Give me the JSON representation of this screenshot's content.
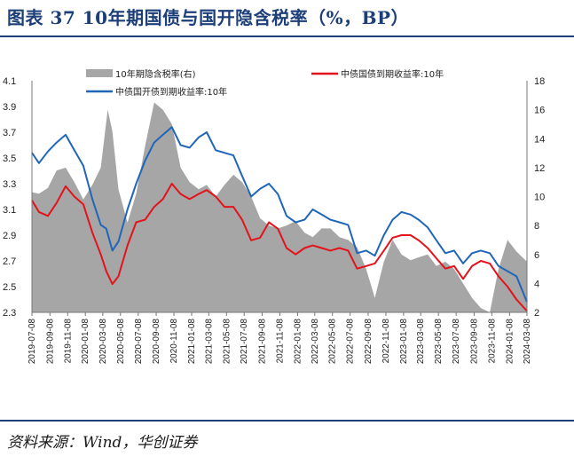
{
  "figure": {
    "title": "图表 37  10年期国债与国开隐含税率（%，BP）",
    "source": "资料来源：Wind，华创证券"
  },
  "colors": {
    "title": "#1c3f7a",
    "rule": "#1c3f7a",
    "gov": "#e3121b",
    "cdb": "#1f66b9",
    "spread": "#a6a6a6"
  },
  "chart_data": {
    "type": "line",
    "title": "",
    "left_axis": {
      "range": [
        2.3,
        4.1
      ],
      "ticks": [
        "4.1",
        "3.9",
        "3.7",
        "3.5",
        "3.3",
        "3.1",
        "2.9",
        "2.7",
        "2.5",
        "2.3"
      ]
    },
    "right_axis": {
      "range": [
        2,
        18
      ],
      "ticks": [
        "18",
        "16",
        "14",
        "12",
        "10",
        "8",
        "6",
        "4",
        "2"
      ]
    },
    "x_ticks": [
      "2019-07-08",
      "2019-09-08",
      "2019-11-08",
      "2020-01-08",
      "2020-03-08",
      "2020-05-08",
      "2020-07-08",
      "2020-09-08",
      "2020-11-08",
      "2021-01-08",
      "2021-03-08",
      "2021-05-08",
      "2021-07-08",
      "2021-09-08",
      "2021-11-08",
      "2022-01-08",
      "2022-03-08",
      "2022-05-08",
      "2022-07-08",
      "2022-09-08",
      "2022-11-08",
      "2023-01-08",
      "2023-03-08",
      "2023-05-08",
      "2023-07-08",
      "2023-09-08",
      "2023-11-08",
      "2024-01-08",
      "2024-03-08"
    ],
    "legend": [
      "10年期隐含税率(右)",
      "中债国债到期收益率:10年",
      "中债国开债到期收益率:10年"
    ],
    "series": [
      {
        "name": "10年期隐含税率(右)",
        "axis": "right",
        "type": "area",
        "color": "#a6a6a6",
        "points": [
          [
            "2019-07-08",
            10.3
          ],
          [
            "2019-08-01",
            10.2
          ],
          [
            "2019-09-01",
            10.6
          ],
          [
            "2019-10-01",
            11.8
          ],
          [
            "2019-11-01",
            12.0
          ],
          [
            "2019-12-01",
            11.0
          ],
          [
            "2020-01-01",
            9.8
          ],
          [
            "2020-02-01",
            10.8
          ],
          [
            "2020-03-01",
            12.0
          ],
          [
            "2020-03-25",
            16.0
          ],
          [
            "2020-04-10",
            14.5
          ],
          [
            "2020-05-01",
            10.5
          ],
          [
            "2020-06-01",
            8.2
          ],
          [
            "2020-07-01",
            10.2
          ],
          [
            "2020-08-01",
            13.5
          ],
          [
            "2020-09-01",
            16.5
          ],
          [
            "2020-10-01",
            16.0
          ],
          [
            "2020-11-01",
            15.0
          ],
          [
            "2020-12-01",
            12.0
          ],
          [
            "2021-01-01",
            11.0
          ],
          [
            "2021-02-01",
            10.5
          ],
          [
            "2021-03-01",
            10.8
          ],
          [
            "2021-04-01",
            10.0
          ],
          [
            "2021-05-01",
            10.8
          ],
          [
            "2021-06-01",
            11.5
          ],
          [
            "2021-07-01",
            11.0
          ],
          [
            "2021-08-01",
            10.0
          ],
          [
            "2021-09-01",
            8.5
          ],
          [
            "2021-10-01",
            8.0
          ],
          [
            "2021-11-01",
            7.8
          ],
          [
            "2021-12-01",
            8.0
          ],
          [
            "2022-01-01",
            8.3
          ],
          [
            "2022-02-01",
            7.5
          ],
          [
            "2022-03-01",
            7.2
          ],
          [
            "2022-04-01",
            7.8
          ],
          [
            "2022-05-01",
            7.8
          ],
          [
            "2022-06-01",
            7.2
          ],
          [
            "2022-07-01",
            7.0
          ],
          [
            "2022-08-01",
            6.5
          ],
          [
            "2022-09-01",
            5.0
          ],
          [
            "2022-10-01",
            3.0
          ],
          [
            "2022-11-01",
            5.5
          ],
          [
            "2022-12-01",
            7.0
          ],
          [
            "2023-01-01",
            6.0
          ],
          [
            "2023-02-01",
            5.6
          ],
          [
            "2023-03-01",
            5.8
          ],
          [
            "2023-04-01",
            6.0
          ],
          [
            "2023-05-01",
            5.2
          ],
          [
            "2023-06-01",
            5.5
          ],
          [
            "2023-07-01",
            5.0
          ],
          [
            "2023-08-01",
            4.0
          ],
          [
            "2023-09-01",
            3.0
          ],
          [
            "2023-10-01",
            2.3
          ],
          [
            "2023-11-01",
            2.0
          ],
          [
            "2023-12-01",
            5.0
          ],
          [
            "2024-01-01",
            7.0
          ],
          [
            "2024-02-01",
            6.2
          ],
          [
            "2024-03-08",
            5.5
          ]
        ]
      },
      {
        "name": "中债国债到期收益率:10年",
        "axis": "left",
        "type": "line",
        "color": "#e3121b",
        "points": [
          [
            "2019-07-08",
            3.17
          ],
          [
            "2019-08-01",
            3.08
          ],
          [
            "2019-09-01",
            3.05
          ],
          [
            "2019-10-01",
            3.15
          ],
          [
            "2019-11-01",
            3.28
          ],
          [
            "2019-12-01",
            3.2
          ],
          [
            "2020-01-01",
            3.14
          ],
          [
            "2020-02-01",
            2.92
          ],
          [
            "2020-03-01",
            2.75
          ],
          [
            "2020-03-20",
            2.62
          ],
          [
            "2020-04-10",
            2.52
          ],
          [
            "2020-05-01",
            2.58
          ],
          [
            "2020-06-01",
            2.82
          ],
          [
            "2020-07-01",
            3.0
          ],
          [
            "2020-08-01",
            3.02
          ],
          [
            "2020-09-01",
            3.12
          ],
          [
            "2020-10-01",
            3.18
          ],
          [
            "2020-11-01",
            3.3
          ],
          [
            "2020-12-01",
            3.22
          ],
          [
            "2021-01-01",
            3.18
          ],
          [
            "2021-02-01",
            3.22
          ],
          [
            "2021-03-01",
            3.25
          ],
          [
            "2021-04-01",
            3.2
          ],
          [
            "2021-05-01",
            3.12
          ],
          [
            "2021-06-01",
            3.12
          ],
          [
            "2021-07-01",
            3.02
          ],
          [
            "2021-08-01",
            2.86
          ],
          [
            "2021-09-01",
            2.88
          ],
          [
            "2021-10-01",
            3.0
          ],
          [
            "2021-11-01",
            2.95
          ],
          [
            "2021-12-01",
            2.8
          ],
          [
            "2022-01-01",
            2.75
          ],
          [
            "2022-02-01",
            2.8
          ],
          [
            "2022-03-01",
            2.82
          ],
          [
            "2022-04-01",
            2.8
          ],
          [
            "2022-05-01",
            2.78
          ],
          [
            "2022-06-01",
            2.8
          ],
          [
            "2022-07-01",
            2.78
          ],
          [
            "2022-08-01",
            2.64
          ],
          [
            "2022-09-01",
            2.66
          ],
          [
            "2022-10-01",
            2.68
          ],
          [
            "2022-11-01",
            2.78
          ],
          [
            "2022-12-01",
            2.88
          ],
          [
            "2023-01-01",
            2.9
          ],
          [
            "2023-02-01",
            2.9
          ],
          [
            "2023-03-01",
            2.86
          ],
          [
            "2023-04-01",
            2.8
          ],
          [
            "2023-05-01",
            2.72
          ],
          [
            "2023-06-01",
            2.64
          ],
          [
            "2023-07-01",
            2.66
          ],
          [
            "2023-08-01",
            2.56
          ],
          [
            "2023-09-01",
            2.66
          ],
          [
            "2023-10-01",
            2.7
          ],
          [
            "2023-11-01",
            2.68
          ],
          [
            "2023-12-01",
            2.58
          ],
          [
            "2024-01-01",
            2.5
          ],
          [
            "2024-02-01",
            2.4
          ],
          [
            "2024-03-08",
            2.31
          ]
        ]
      },
      {
        "name": "中债国开债到期收益率:10年",
        "axis": "left",
        "type": "line",
        "color": "#1f66b9",
        "points": [
          [
            "2019-07-08",
            3.54
          ],
          [
            "2019-08-01",
            3.46
          ],
          [
            "2019-09-01",
            3.55
          ],
          [
            "2019-10-01",
            3.62
          ],
          [
            "2019-11-01",
            3.68
          ],
          [
            "2019-12-01",
            3.56
          ],
          [
            "2020-01-01",
            3.44
          ],
          [
            "2020-02-01",
            3.18
          ],
          [
            "2020-03-01",
            2.98
          ],
          [
            "2020-03-20",
            2.95
          ],
          [
            "2020-04-10",
            2.78
          ],
          [
            "2020-05-01",
            2.85
          ],
          [
            "2020-06-01",
            3.1
          ],
          [
            "2020-07-01",
            3.3
          ],
          [
            "2020-08-01",
            3.48
          ],
          [
            "2020-09-01",
            3.62
          ],
          [
            "2020-10-01",
            3.68
          ],
          [
            "2020-11-01",
            3.74
          ],
          [
            "2020-12-01",
            3.6
          ],
          [
            "2021-01-01",
            3.58
          ],
          [
            "2021-02-01",
            3.66
          ],
          [
            "2021-03-01",
            3.7
          ],
          [
            "2021-04-01",
            3.56
          ],
          [
            "2021-05-01",
            3.54
          ],
          [
            "2021-06-01",
            3.52
          ],
          [
            "2021-07-01",
            3.36
          ],
          [
            "2021-08-01",
            3.2
          ],
          [
            "2021-09-01",
            3.26
          ],
          [
            "2021-10-01",
            3.3
          ],
          [
            "2021-11-01",
            3.22
          ],
          [
            "2021-12-01",
            3.05
          ],
          [
            "2022-01-01",
            3.0
          ],
          [
            "2022-02-01",
            3.02
          ],
          [
            "2022-03-01",
            3.1
          ],
          [
            "2022-04-01",
            3.06
          ],
          [
            "2022-05-01",
            3.02
          ],
          [
            "2022-06-01",
            3.0
          ],
          [
            "2022-07-01",
            2.98
          ],
          [
            "2022-08-01",
            2.76
          ],
          [
            "2022-09-01",
            2.78
          ],
          [
            "2022-10-01",
            2.74
          ],
          [
            "2022-11-01",
            2.9
          ],
          [
            "2022-12-01",
            3.02
          ],
          [
            "2023-01-01",
            3.08
          ],
          [
            "2023-02-01",
            3.06
          ],
          [
            "2023-03-01",
            3.02
          ],
          [
            "2023-04-01",
            2.96
          ],
          [
            "2023-05-01",
            2.86
          ],
          [
            "2023-06-01",
            2.76
          ],
          [
            "2023-07-01",
            2.78
          ],
          [
            "2023-08-01",
            2.68
          ],
          [
            "2023-09-01",
            2.76
          ],
          [
            "2023-10-01",
            2.78
          ],
          [
            "2023-11-01",
            2.76
          ],
          [
            "2023-12-01",
            2.66
          ],
          [
            "2024-01-01",
            2.62
          ],
          [
            "2024-02-01",
            2.58
          ],
          [
            "2024-03-08",
            2.38
          ]
        ]
      }
    ]
  }
}
